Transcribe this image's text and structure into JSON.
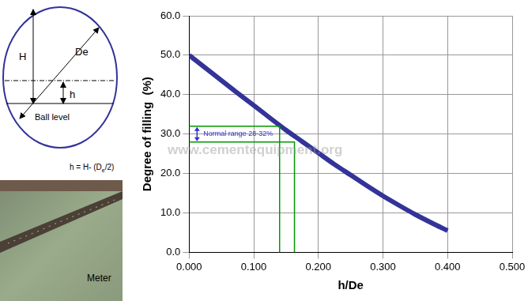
{
  "diagram": {
    "labels": [
      "H",
      "De",
      "h",
      "Ball level"
    ],
    "formula": [
      "h = H- (D",
      "e",
      "/2)"
    ]
  },
  "photo": {
    "caption": "Meter"
  },
  "watermark": "www.cementequipment.org",
  "chart_data": {
    "type": "line",
    "x_label": "h/De",
    "y_label": "Degree of filling  (%)",
    "x": [
      0,
      0.025,
      0.05,
      0.075,
      0.1,
      0.125,
      0.15,
      0.175,
      0.2,
      0.225,
      0.25,
      0.275,
      0.3,
      0.325,
      0.35,
      0.375,
      0.4
    ],
    "series": [
      {
        "name": "Degree of filling",
        "color": "#333399",
        "values": [
          50.0,
          46.8,
          43.6,
          40.4,
          37.3,
          34.1,
          31.0,
          28.1,
          25.2,
          22.3,
          19.6,
          16.9,
          14.3,
          11.9,
          9.6,
          7.5,
          5.5
        ]
      }
    ],
    "xlim": [
      0,
      0.5
    ],
    "xticks": [
      {
        "value": 0,
        "label": "0.000"
      },
      {
        "value": 0.1,
        "label": "0.100"
      },
      {
        "value": 0.2,
        "label": "0.200"
      },
      {
        "value": 0.3,
        "label": "0.300"
      },
      {
        "value": 0.4,
        "label": "0.400"
      },
      {
        "value": 0.5,
        "label": "0.500"
      }
    ],
    "ylim": [
      0,
      60
    ],
    "yticks": [
      {
        "value": 0,
        "label": "0.0"
      },
      {
        "value": 10,
        "label": "10.0"
      },
      {
        "value": 20,
        "label": "20.0"
      },
      {
        "value": 30,
        "label": "30.0"
      },
      {
        "value": 40,
        "label": "40.0"
      },
      {
        "value": 50,
        "label": "50.0"
      },
      {
        "value": 60,
        "label": "60.0"
      }
    ],
    "grid": true,
    "normal_range": {
      "text": "Normal range 28-32%",
      "color": "#009900",
      "y": [
        28,
        32
      ],
      "x": [
        0.14,
        0.163
      ]
    }
  }
}
